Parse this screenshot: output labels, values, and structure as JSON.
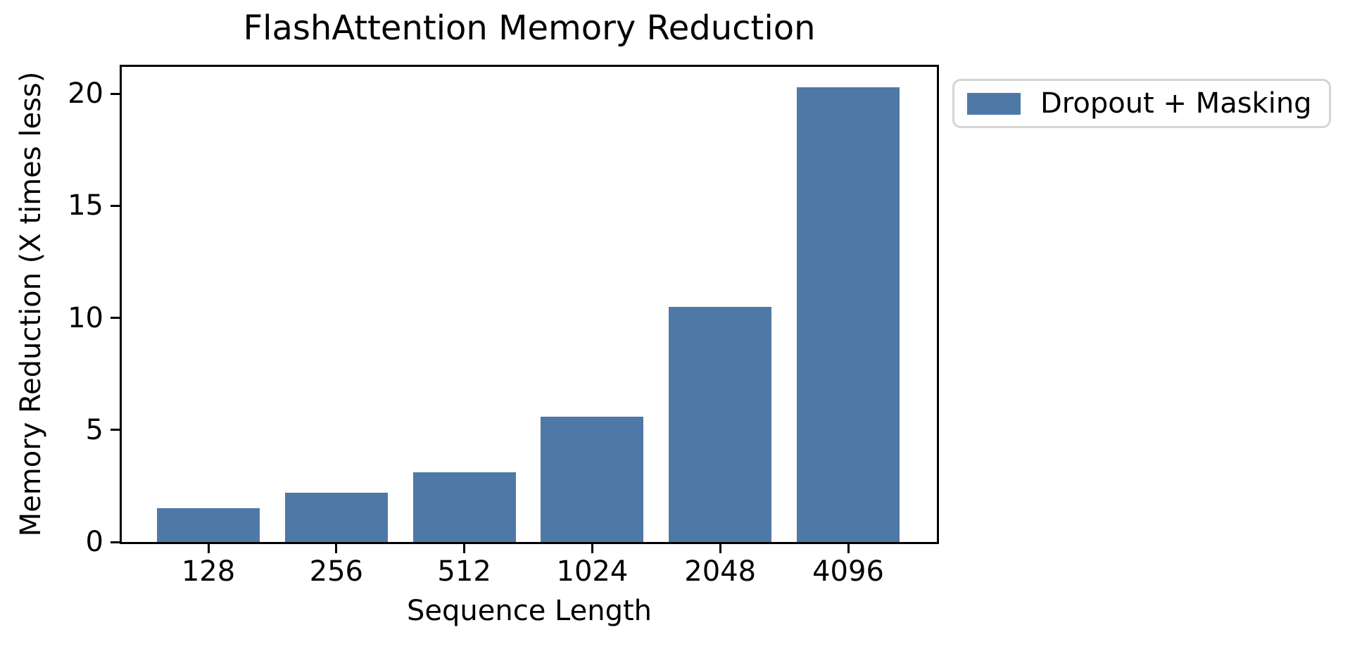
{
  "chart_data": {
    "type": "bar",
    "title": "FlashAttention Memory Reduction",
    "xlabel": "Sequence Length",
    "ylabel": "Memory Reduction (X times less)",
    "categories": [
      "128",
      "256",
      "512",
      "1024",
      "2048",
      "4096"
    ],
    "values": [
      1.5,
      2.2,
      3.1,
      5.6,
      10.5,
      20.3
    ],
    "yticks": [
      0,
      5,
      10,
      15,
      20
    ],
    "ylim": [
      0,
      21.2
    ],
    "grid": false,
    "legend": {
      "label": "Dropout + Masking",
      "position": "outside-upper-right"
    },
    "colors": {
      "bar": "#4E79A7",
      "spine": "#000000",
      "legend_border": "#d5d5d5",
      "text": "#000000",
      "background": "#ffffff"
    }
  }
}
